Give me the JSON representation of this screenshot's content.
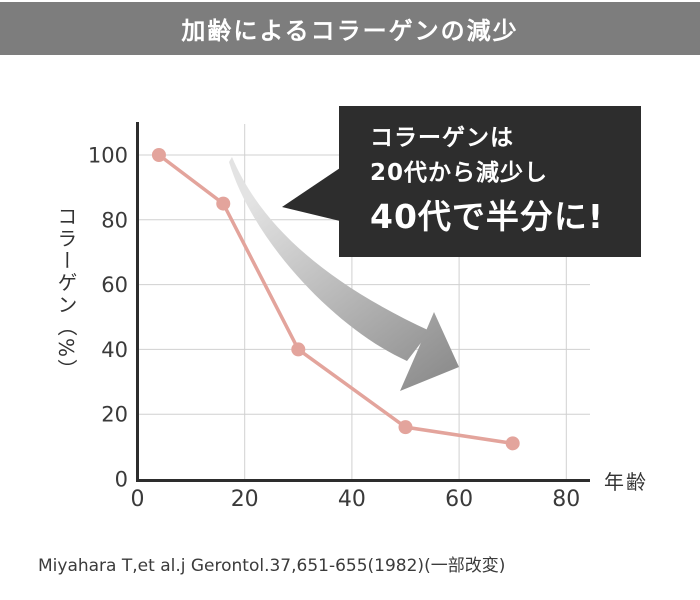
{
  "header": {
    "title": "加齢によるコラーゲンの減少",
    "bg_color": "#7d7d7d",
    "text_color": "#ffffff"
  },
  "callout": {
    "line1": "コラーゲンは",
    "line2": "20代から減少し",
    "line3": "40代で半分に!",
    "bg_color": "#2d2d2d",
    "text_color": "#ffffff"
  },
  "chart_data": {
    "type": "line",
    "title": "加齢によるコラーゲンの減少",
    "xlabel": "年齢",
    "ylabel": "コラーゲン（%）",
    "x": [
      4,
      16,
      30,
      50,
      70
    ],
    "values": [
      100,
      85,
      40,
      16,
      11
    ],
    "xticks": [
      0,
      20,
      40,
      60,
      80
    ],
    "yticks": [
      0,
      20,
      40,
      60,
      80,
      100
    ],
    "xlim": [
      0,
      84
    ],
    "ylim": [
      0,
      110
    ],
    "grid": true,
    "legend": "none",
    "line_color": "#e3a49c",
    "point_color": "#e3a49c",
    "axis_color": "#2d2d2d",
    "grid_color": "#d0d0d0"
  },
  "arrow": {
    "name": "decline-swoosh-arrow",
    "color_start": "#e3e3e3",
    "color_end": "#8f8f8f"
  },
  "citation": {
    "text": "Miyahara T,et al.j Gerontol.37,651-655(1982)(一部改変)"
  }
}
